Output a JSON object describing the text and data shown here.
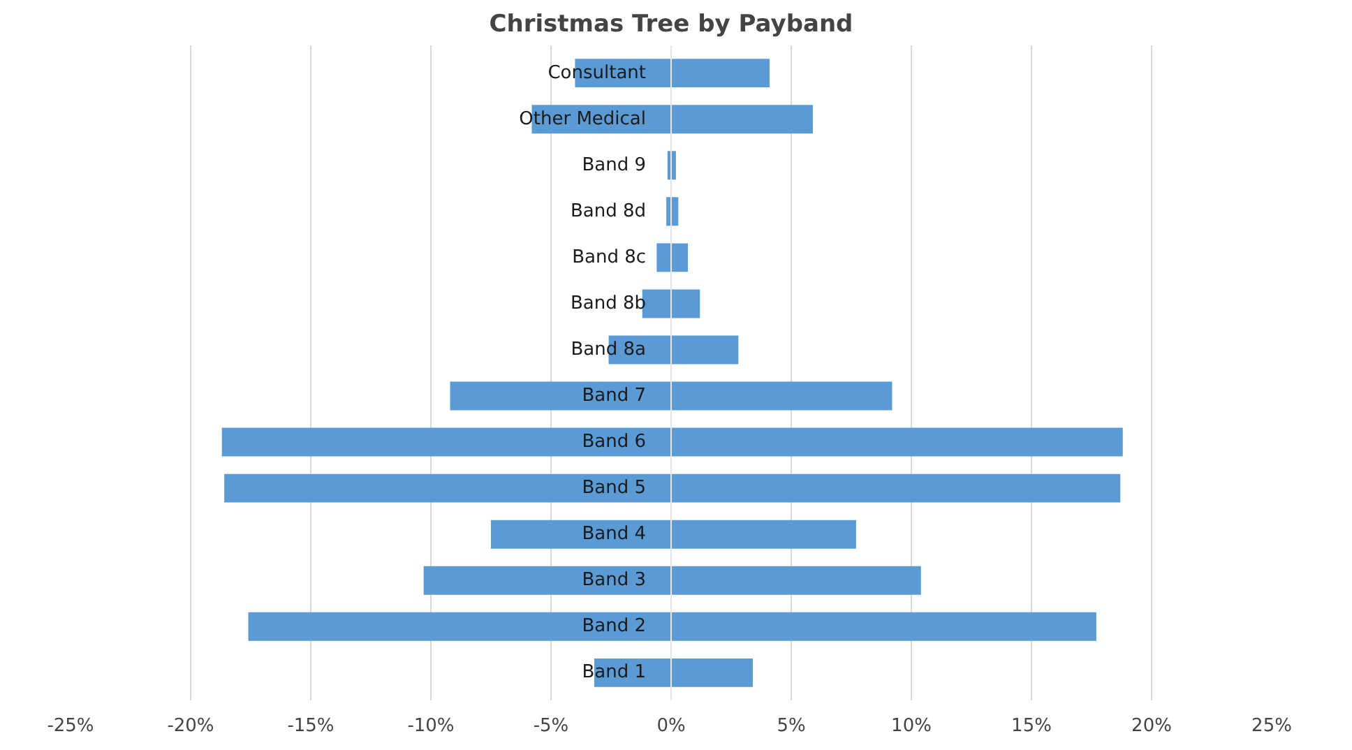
{
  "chart_data": {
    "type": "bar",
    "title": "Christmas Tree by Payband",
    "orientation": "horizontal",
    "stacked": true,
    "categories": [
      "Consultant",
      "Other Medical",
      "Band 9",
      "Band 8d",
      "Band 8c",
      "Band 8b",
      "Band 8a",
      "Band 7",
      "Band 6",
      "Band 5",
      "Band 4",
      "Band 3",
      "Band 2",
      "Band 1"
    ],
    "series": [
      {
        "color": "#5b9bd5",
        "values": [
          -4.0,
          -5.8,
          -0.15,
          -0.2,
          -0.6,
          -1.2,
          -2.6,
          -9.2,
          -18.7,
          -18.6,
          -7.5,
          -10.3,
          -17.6,
          -3.2
        ]
      },
      {
        "color": "#5b9bd5",
        "values": [
          4.1,
          5.9,
          0.2,
          0.3,
          0.7,
          1.2,
          2.8,
          9.2,
          18.8,
          18.7,
          7.7,
          10.4,
          17.7,
          3.4
        ]
      }
    ],
    "xlim": [
      -25,
      25
    ],
    "xticks": [
      {
        "value": -25,
        "label": "-25%"
      },
      {
        "value": -20,
        "label": "-20%"
      },
      {
        "value": -15,
        "label": "-15%"
      },
      {
        "value": -10,
        "label": "-10%"
      },
      {
        "value": -5,
        "label": "-5%"
      },
      {
        "value": 0,
        "label": "0%"
      },
      {
        "value": 5,
        "label": "5%"
      },
      {
        "value": 10,
        "label": "10%"
      },
      {
        "value": 15,
        "label": "15%"
      },
      {
        "value": 20,
        "label": "20%"
      },
      {
        "value": 25,
        "label": "25%"
      }
    ],
    "grid": "x"
  }
}
